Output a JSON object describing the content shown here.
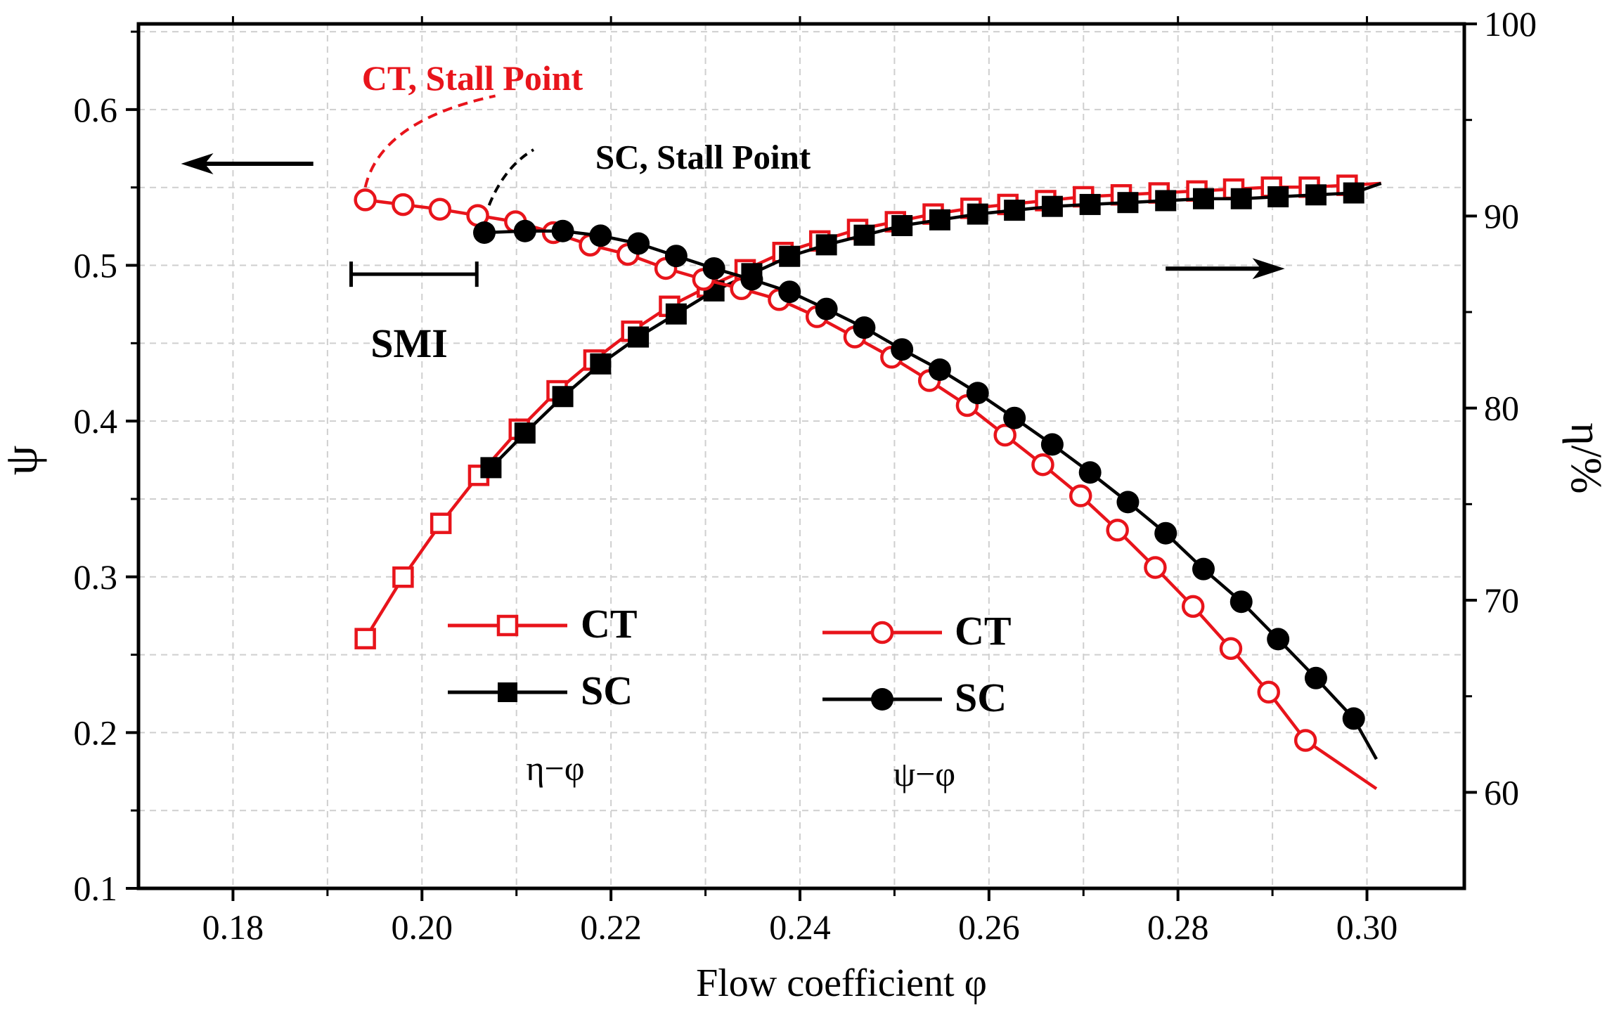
{
  "chart_data": {
    "type": "line",
    "xlabel": "Flow coefficient φ",
    "ylabel_left": "ψ",
    "ylabel_right": "η/%",
    "xlim": [
      0.17,
      0.3103
    ],
    "ylim_left": [
      0.1,
      0.655
    ],
    "ylim_right": [
      55.0,
      100.0
    ],
    "x_ticks": [
      0.18,
      0.2,
      0.22,
      0.24,
      0.26,
      0.28,
      0.3
    ],
    "x_tick_labels": [
      "0.18",
      "0.20",
      "0.22",
      "0.24",
      "0.26",
      "0.28",
      "0.30"
    ],
    "y_left_ticks": [
      0.1,
      0.2,
      0.3,
      0.4,
      0.5,
      0.6
    ],
    "y_left_tick_labels": [
      "0.1",
      "0.2",
      "0.3",
      "0.4",
      "0.5",
      "0.6"
    ],
    "y_right_ticks": [
      60,
      70,
      80,
      90,
      100
    ],
    "y_right_tick_labels": [
      "60",
      "70",
      "80",
      "90",
      "100"
    ],
    "grid": true,
    "colors": {
      "CT": "#e8141b",
      "SC": "#000000"
    },
    "series": [
      {
        "name": "CT",
        "group": "η−φ",
        "axis": "right",
        "marker": "square-open",
        "color": "#e8141b",
        "points": [
          [
            0.194,
            68.0
          ],
          [
            0.198,
            71.2
          ],
          [
            0.202,
            74.0
          ],
          [
            0.206,
            76.5
          ],
          [
            0.2103,
            78.9
          ],
          [
            0.2143,
            80.9
          ],
          [
            0.2182,
            82.5
          ],
          [
            0.2222,
            84.0
          ],
          [
            0.2262,
            85.3
          ],
          [
            0.2302,
            86.3
          ],
          [
            0.2342,
            87.2
          ],
          [
            0.2382,
            88.1
          ],
          [
            0.2421,
            88.7
          ],
          [
            0.2461,
            89.3
          ],
          [
            0.2501,
            89.7
          ],
          [
            0.2541,
            90.1
          ],
          [
            0.2581,
            90.4
          ],
          [
            0.262,
            90.6
          ],
          [
            0.266,
            90.8
          ],
          [
            0.27,
            91.0
          ],
          [
            0.274,
            91.1
          ],
          [
            0.278,
            91.2
          ],
          [
            0.282,
            91.3
          ],
          [
            0.2859,
            91.4
          ],
          [
            0.2899,
            91.5
          ],
          [
            0.2939,
            91.5
          ],
          [
            0.2979,
            91.6
          ]
        ],
        "line": [
          [
            0.194,
            68.0
          ],
          [
            0.3015,
            91.7
          ]
        ]
      },
      {
        "name": "SC",
        "group": "η−φ",
        "axis": "right",
        "marker": "square-filled",
        "color": "#000000",
        "points": [
          [
            0.2073,
            76.9
          ],
          [
            0.2109,
            78.7
          ],
          [
            0.2149,
            80.6
          ],
          [
            0.2189,
            82.3
          ],
          [
            0.2229,
            83.7
          ],
          [
            0.2269,
            84.9
          ],
          [
            0.2309,
            86.1
          ],
          [
            0.2349,
            87.0
          ],
          [
            0.2389,
            87.9
          ],
          [
            0.2428,
            88.5
          ],
          [
            0.2468,
            89.0
          ],
          [
            0.2508,
            89.5
          ],
          [
            0.2548,
            89.8
          ],
          [
            0.2588,
            90.1
          ],
          [
            0.2627,
            90.3
          ],
          [
            0.2667,
            90.5
          ],
          [
            0.2707,
            90.6
          ],
          [
            0.2747,
            90.7
          ],
          [
            0.2787,
            90.8
          ],
          [
            0.2827,
            90.9
          ],
          [
            0.2867,
            90.9
          ],
          [
            0.2906,
            91.0
          ],
          [
            0.2946,
            91.1
          ],
          [
            0.2986,
            91.2
          ]
        ],
        "line": [
          [
            0.2073,
            76.9
          ],
          [
            0.3015,
            91.7
          ]
        ]
      },
      {
        "name": "CT",
        "group": "ψ−φ",
        "axis": "left",
        "marker": "circle-open",
        "color": "#e8141b",
        "points": [
          [
            0.194,
            0.542
          ],
          [
            0.198,
            0.539
          ],
          [
            0.2019,
            0.536
          ],
          [
            0.2059,
            0.532
          ],
          [
            0.2099,
            0.528
          ],
          [
            0.2139,
            0.521
          ],
          [
            0.2178,
            0.513
          ],
          [
            0.2218,
            0.507
          ],
          [
            0.2258,
            0.498
          ],
          [
            0.2298,
            0.491
          ],
          [
            0.2338,
            0.485
          ],
          [
            0.2378,
            0.478
          ],
          [
            0.2418,
            0.467
          ],
          [
            0.2458,
            0.454
          ],
          [
            0.2497,
            0.441
          ],
          [
            0.2537,
            0.426
          ],
          [
            0.2577,
            0.41
          ],
          [
            0.2617,
            0.391
          ],
          [
            0.2657,
            0.372
          ],
          [
            0.2697,
            0.352
          ],
          [
            0.2736,
            0.33
          ],
          [
            0.2776,
            0.306
          ],
          [
            0.2816,
            0.281
          ],
          [
            0.2856,
            0.254
          ],
          [
            0.2896,
            0.226
          ],
          [
            0.2935,
            0.195
          ]
        ],
        "line": [
          [
            0.194,
            0.542
          ],
          [
            0.301,
            0.164
          ]
        ]
      },
      {
        "name": "SC",
        "group": "ψ−φ",
        "axis": "left",
        "marker": "circle-filled",
        "color": "#000000",
        "points": [
          [
            0.2066,
            0.521
          ],
          [
            0.2109,
            0.522
          ],
          [
            0.2149,
            0.522
          ],
          [
            0.2189,
            0.519
          ],
          [
            0.2229,
            0.514
          ],
          [
            0.2269,
            0.506
          ],
          [
            0.2309,
            0.498
          ],
          [
            0.2349,
            0.491
          ],
          [
            0.2389,
            0.483
          ],
          [
            0.2428,
            0.472
          ],
          [
            0.2468,
            0.46
          ],
          [
            0.2508,
            0.446
          ],
          [
            0.2548,
            0.433
          ],
          [
            0.2588,
            0.418
          ],
          [
            0.2627,
            0.402
          ],
          [
            0.2667,
            0.385
          ],
          [
            0.2707,
            0.367
          ],
          [
            0.2747,
            0.348
          ],
          [
            0.2787,
            0.328
          ],
          [
            0.2827,
            0.305
          ],
          [
            0.2867,
            0.284
          ],
          [
            0.2906,
            0.26
          ],
          [
            0.2946,
            0.235
          ],
          [
            0.2986,
            0.209
          ]
        ],
        "line": [
          [
            0.2066,
            0.521
          ],
          [
            0.301,
            0.183
          ]
        ]
      }
    ],
    "legend": {
      "placement": "center",
      "eta_group_label": "η−φ",
      "psi_group_label": "ψ−φ",
      "eta_entries": [
        "CT",
        "SC"
      ],
      "psi_entries": [
        "CT",
        "SC"
      ]
    },
    "annotations": {
      "ct_stall": "CT, Stall Point",
      "sc_stall": "SC, Stall Point",
      "smi": "SMI",
      "smi_range": [
        0.1925,
        0.2058
      ],
      "smi_level": 0.4943,
      "left_arrow_level": 0.5652,
      "left_arrow_span": [
        0.1745,
        0.1885
      ],
      "right_arrow_level": 87.26,
      "right_arrow_span": [
        0.2787,
        0.2913
      ]
    }
  }
}
